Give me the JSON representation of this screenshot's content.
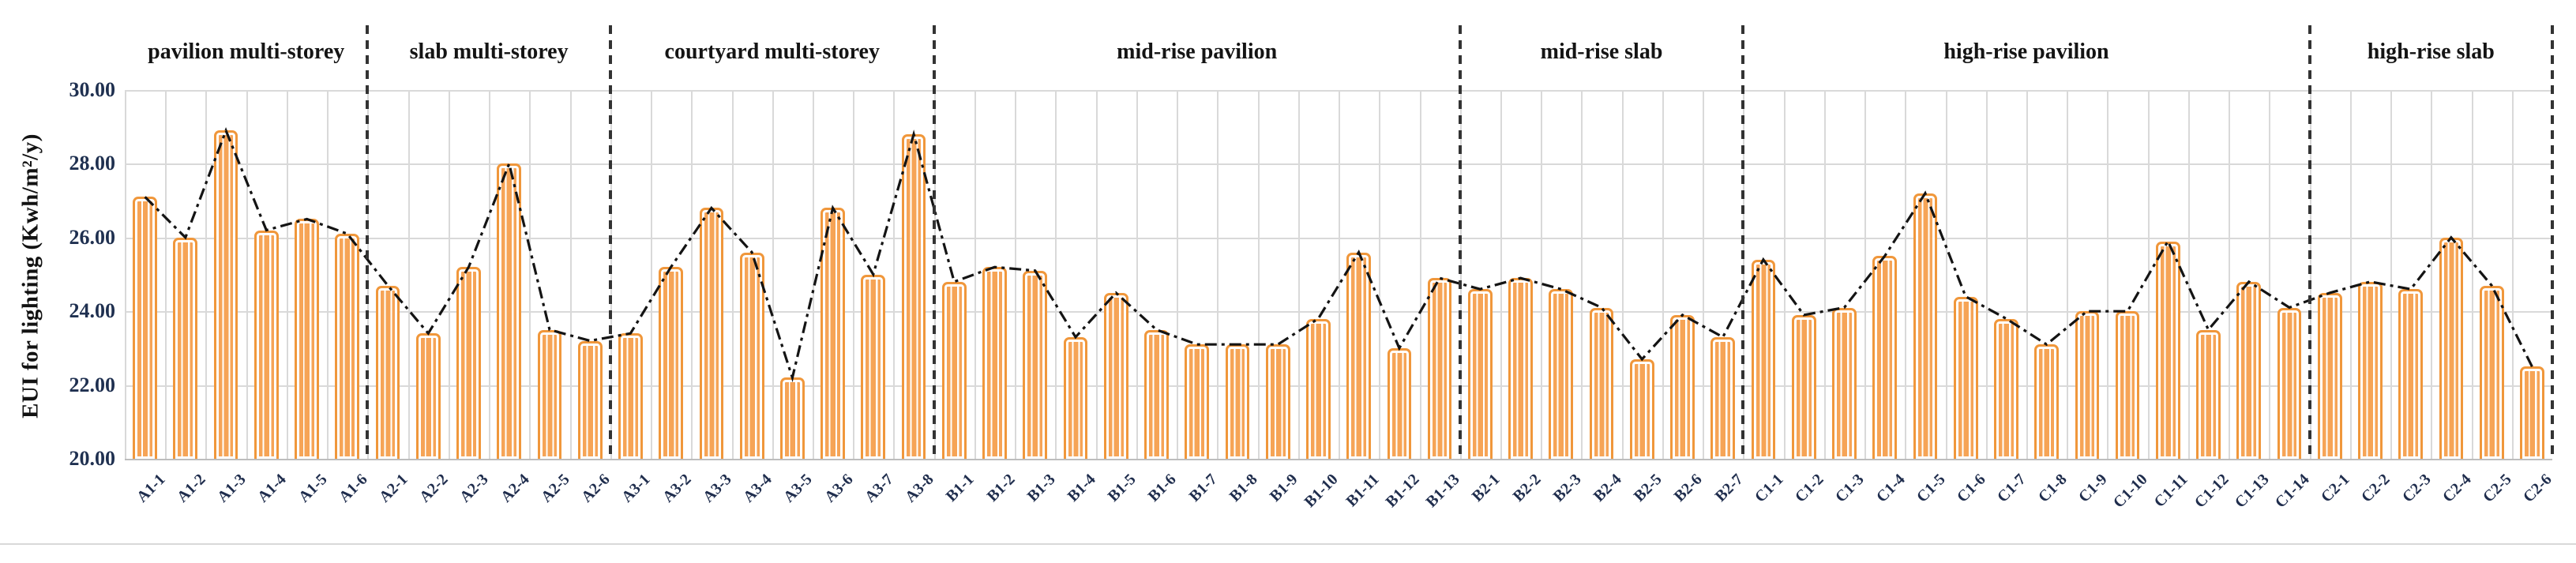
{
  "chart_data": {
    "type": "bar",
    "title": "",
    "xlabel": "",
    "ylabel": "EUI for lighting (Kwh/m²/y)",
    "ylim": [
      20,
      30
    ],
    "yticks": [
      "30.00",
      "28.00",
      "26.00",
      "24.00",
      "22.00",
      "20.00"
    ],
    "grid": true,
    "legend_position": "none",
    "bar_fill_color": "#f6a456",
    "bar_border_color": "#f0973b",
    "trend_line_style": "black dash-dot through bar tops",
    "group_separator_style": "vertical black dashed lines",
    "groups": [
      {
        "label": "pavilion multi-storey",
        "categories": [
          "A1-1",
          "A1-2",
          "A1-3",
          "A1-4",
          "A1-5",
          "A1-6"
        ],
        "values": [
          27.1,
          26.0,
          28.9,
          26.2,
          26.5,
          26.1
        ]
      },
      {
        "label": "slab multi-storey",
        "categories": [
          "A2-1",
          "A2-2",
          "A2-3",
          "A2-4",
          "A2-5",
          "A2-6"
        ],
        "values": [
          24.7,
          23.4,
          25.2,
          28.0,
          23.5,
          23.2
        ]
      },
      {
        "label": "courtyard multi-storey",
        "categories": [
          "A3-1",
          "A3-2",
          "A3-3",
          "A3-4",
          "A3-5",
          "A3-6",
          "A3-7",
          "A3-8"
        ],
        "values": [
          23.4,
          25.2,
          26.8,
          25.6,
          22.2,
          26.8,
          25.0,
          28.8
        ]
      },
      {
        "label": "mid-rise pavilion",
        "categories": [
          "B1-1",
          "B1-2",
          "B1-3",
          "B1-4",
          "B1-5",
          "B1-6",
          "B1-7",
          "B1-8",
          "B1-9",
          "B1-10",
          "B1-11",
          "B1-12",
          "B1-13"
        ],
        "values": [
          24.8,
          25.2,
          25.1,
          23.3,
          24.5,
          23.5,
          23.1,
          23.1,
          23.1,
          23.8,
          25.6,
          23.0,
          24.9
        ]
      },
      {
        "label": "mid-rise slab",
        "categories": [
          "B2-1",
          "B2-2",
          "B2-3",
          "B2-4",
          "B2-5",
          "B2-6",
          "B2-7"
        ],
        "values": [
          24.6,
          24.9,
          24.6,
          24.1,
          22.7,
          23.9,
          23.3
        ]
      },
      {
        "label": "high-rise pavilion",
        "categories": [
          "C1-1",
          "C1-2",
          "C1-3",
          "C1-4",
          "C1-5",
          "C1-6",
          "C1-7",
          "C1-8",
          "C1-9",
          "C1-10",
          "C1-11",
          "C1-12",
          "C1-13",
          "C1-14"
        ],
        "values": [
          25.4,
          23.9,
          24.1,
          25.5,
          27.2,
          24.4,
          23.8,
          23.1,
          24.0,
          24.0,
          25.9,
          23.5,
          24.8,
          24.1
        ]
      },
      {
        "label": "high-rise slab",
        "categories": [
          "C2-1",
          "C2-2",
          "C2-3",
          "C2-4",
          "C2-5",
          "C2-6"
        ],
        "values": [
          24.5,
          24.8,
          24.6,
          26.0,
          24.7,
          22.5
        ]
      }
    ]
  }
}
